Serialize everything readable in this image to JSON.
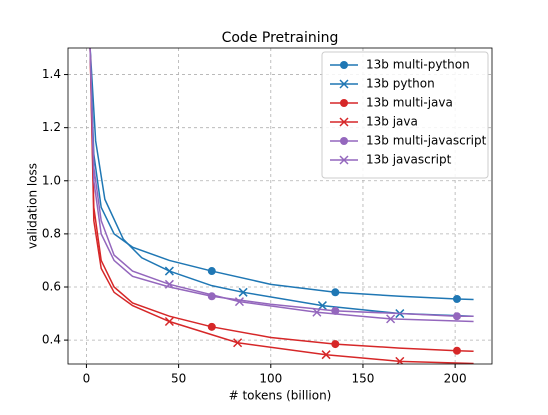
{
  "chart_data": {
    "type": "line",
    "title": "Code Pretraining",
    "xlabel": "# tokens (billion)",
    "ylabel": "validation loss",
    "xlim": [
      -10,
      220
    ],
    "ylim": [
      0.31,
      1.5
    ],
    "xticks": [
      0,
      50,
      100,
      150,
      200
    ],
    "yticks": [
      0.4,
      0.6,
      0.8,
      {
        "value": 1,
        "label": "1.0"
      },
      1.2,
      1.4
    ],
    "grid": true,
    "legend": "upper right",
    "series": [
      {
        "name": "13b multi-python",
        "color": "#1f77b4",
        "marker": "o",
        "x": [
          2,
          4,
          8,
          15,
          25,
          45,
          68,
          100,
          135,
          170,
          201,
          210
        ],
        "values": [
          1.5,
          1.1,
          0.9,
          0.8,
          0.75,
          0.7,
          0.66,
          0.61,
          0.58,
          0.565,
          0.555,
          0.553
        ],
        "markevery": [
          6,
          8,
          10
        ]
      },
      {
        "name": "13b python",
        "color": "#1f77b4",
        "marker": "x",
        "x": [
          2,
          5,
          10,
          20,
          30,
          45,
          68,
          85,
          128,
          170,
          210
        ],
        "values": [
          1.5,
          1.15,
          0.93,
          0.78,
          0.71,
          0.66,
          0.605,
          0.58,
          0.53,
          0.5,
          0.49
        ],
        "markevery": [
          5,
          7,
          8,
          9
        ]
      },
      {
        "name": "13b multi-java",
        "color": "#d62728",
        "marker": "o",
        "x": [
          2,
          4,
          8,
          15,
          25,
          45,
          68,
          100,
          135,
          170,
          201,
          210
        ],
        "values": [
          1.5,
          0.9,
          0.7,
          0.6,
          0.54,
          0.49,
          0.45,
          0.41,
          0.385,
          0.37,
          0.36,
          0.358
        ],
        "markevery": [
          6,
          8,
          10
        ]
      },
      {
        "name": "13b java",
        "color": "#d62728",
        "marker": "x",
        "x": [
          2,
          4,
          8,
          15,
          25,
          45,
          82,
          130,
          170,
          210
        ],
        "values": [
          1.5,
          0.85,
          0.67,
          0.58,
          0.53,
          0.47,
          0.39,
          0.345,
          0.32,
          0.312
        ],
        "markevery": [
          5,
          6,
          7,
          8
        ]
      },
      {
        "name": "13b multi-javascript",
        "color": "#9467bd",
        "marker": "o",
        "x": [
          2,
          4,
          8,
          15,
          25,
          45,
          68,
          100,
          135,
          170,
          201,
          210
        ],
        "values": [
          1.5,
          1.0,
          0.8,
          0.7,
          0.64,
          0.6,
          0.565,
          0.535,
          0.51,
          0.5,
          0.49,
          0.49
        ],
        "markevery": [
          6,
          8,
          10
        ]
      },
      {
        "name": "13b javascript",
        "color": "#9467bd",
        "marker": "x",
        "x": [
          2,
          4,
          8,
          15,
          25,
          45,
          83,
          125,
          165,
          210
        ],
        "values": [
          1.5,
          1.05,
          0.85,
          0.72,
          0.66,
          0.61,
          0.545,
          0.505,
          0.48,
          0.47
        ],
        "markevery": [
          5,
          6,
          7,
          8
        ]
      }
    ]
  }
}
